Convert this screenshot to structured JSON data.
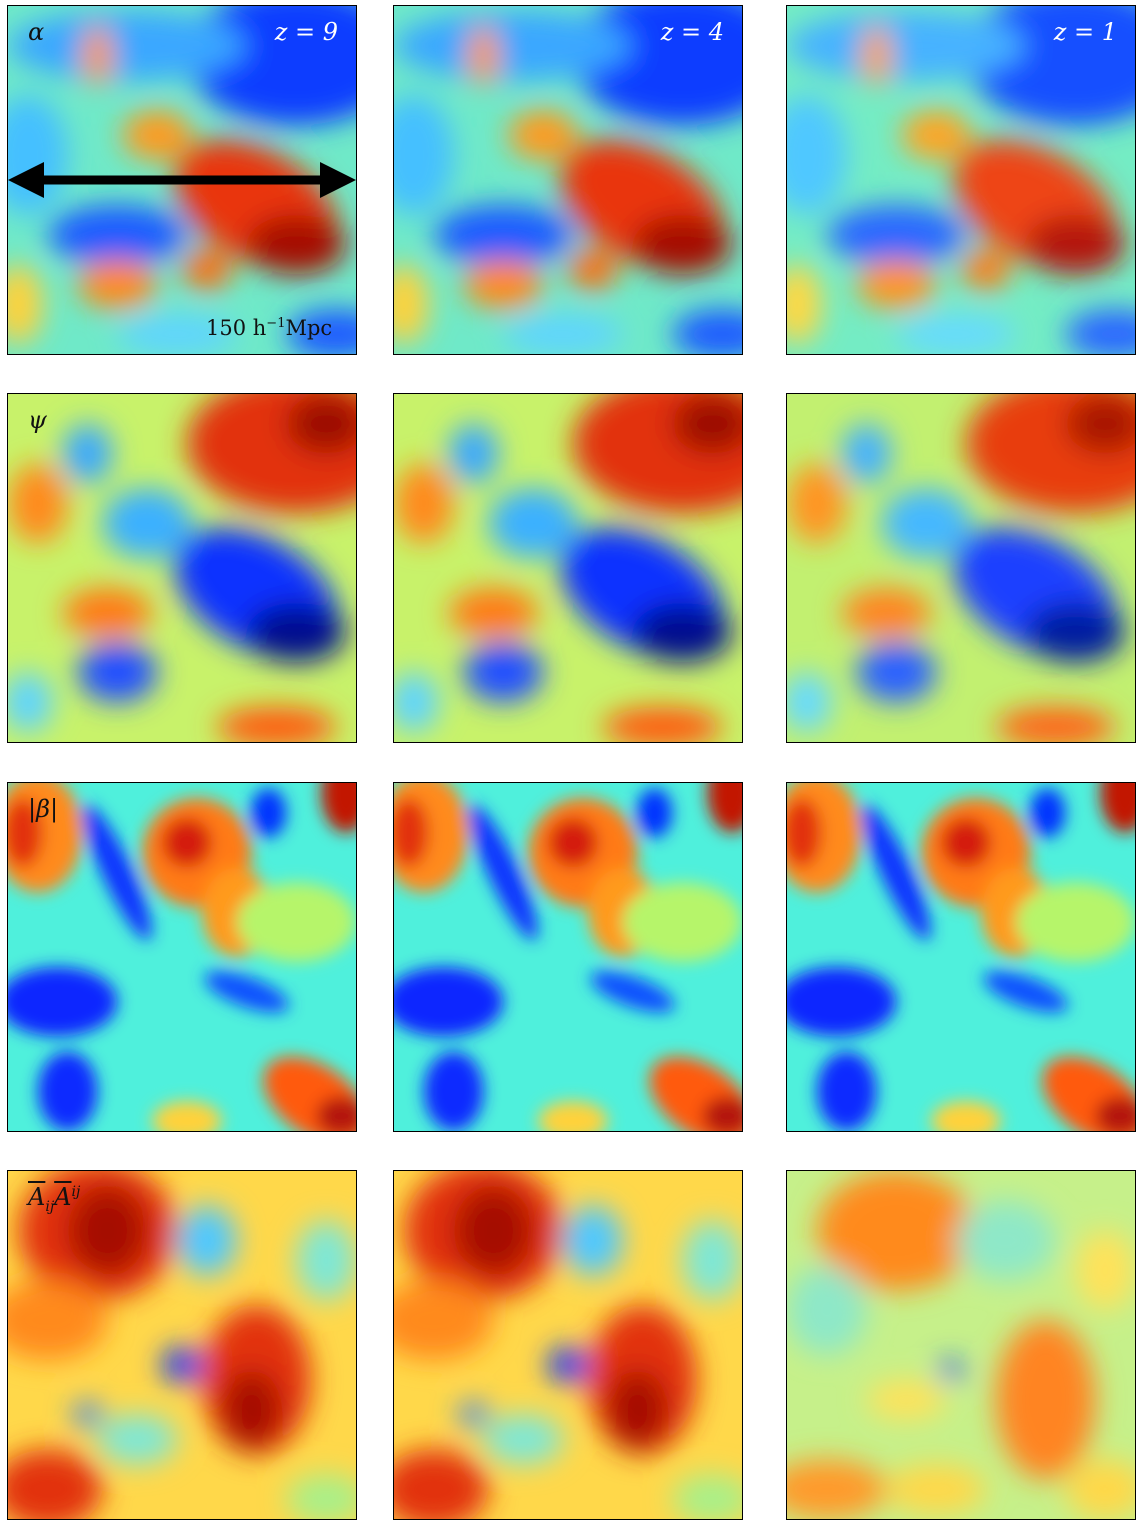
{
  "quantities": [
    {
      "label": "α",
      "colormap": "jet"
    },
    {
      "label": "ψ",
      "colormap": "jet"
    },
    {
      "label": "|β|",
      "colormap": "jet"
    },
    {
      "label": "ĀᵢⱼĀⁱʲ",
      "colormap": "jet"
    }
  ],
  "redshifts": [
    "z = 9",
    "z = 4",
    "z = 1"
  ],
  "scale_bar": {
    "text": "150 h",
    "exp": "−1",
    "unit": "Mpc"
  },
  "colors": {
    "frame": "#000000",
    "scale_bar": "#000000"
  }
}
